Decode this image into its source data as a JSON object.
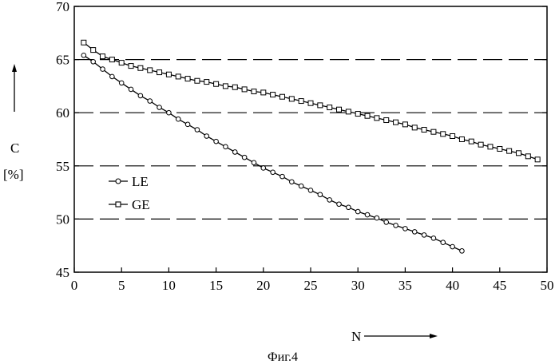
{
  "figure": {
    "caption": "Фиг.4"
  },
  "chart_data": {
    "type": "line",
    "xlabel": "N",
    "ylabel_line1": "C",
    "ylabel_line2": "[%]",
    "xlim": [
      0,
      50
    ],
    "ylim": [
      45,
      70
    ],
    "xticks": [
      0,
      5,
      10,
      15,
      20,
      25,
      30,
      35,
      40,
      45,
      50
    ],
    "yticks": [
      45,
      50,
      55,
      60,
      65,
      70
    ],
    "grid": "horizontal-dashed",
    "legend_position": "center-left",
    "series": [
      {
        "name": "LE",
        "marker": "circle",
        "x": [
          1,
          2,
          3,
          4,
          5,
          6,
          7,
          8,
          9,
          10,
          11,
          12,
          13,
          14,
          15,
          16,
          17,
          18,
          19,
          20,
          21,
          22,
          23,
          24,
          25,
          26,
          27,
          28,
          29,
          30,
          31,
          32,
          33,
          34,
          35,
          36,
          37,
          38,
          39,
          40,
          41
        ],
        "values": [
          65.4,
          64.8,
          64.1,
          63.4,
          62.8,
          62.2,
          61.6,
          61.1,
          60.5,
          60.0,
          59.4,
          58.9,
          58.4,
          57.8,
          57.3,
          56.8,
          56.3,
          55.8,
          55.3,
          54.8,
          54.4,
          54.0,
          53.5,
          53.1,
          52.7,
          52.3,
          51.8,
          51.4,
          51.1,
          50.7,
          50.4,
          50.1,
          49.7,
          49.4,
          49.1,
          48.8,
          48.5,
          48.2,
          47.8,
          47.4,
          47.0
        ]
      },
      {
        "name": "GE",
        "marker": "square",
        "x": [
          1,
          2,
          3,
          4,
          5,
          6,
          7,
          8,
          9,
          10,
          11,
          12,
          13,
          14,
          15,
          16,
          17,
          18,
          19,
          20,
          21,
          22,
          23,
          24,
          25,
          26,
          27,
          28,
          29,
          30,
          31,
          32,
          33,
          34,
          35,
          36,
          37,
          38,
          39,
          40,
          41,
          42,
          43,
          44,
          45,
          46,
          47,
          48,
          49
        ],
        "values": [
          66.6,
          65.9,
          65.3,
          65.0,
          64.7,
          64.4,
          64.2,
          64.0,
          63.8,
          63.6,
          63.4,
          63.2,
          63.0,
          62.9,
          62.7,
          62.5,
          62.4,
          62.2,
          62.0,
          61.9,
          61.7,
          61.5,
          61.3,
          61.1,
          60.9,
          60.7,
          60.5,
          60.3,
          60.1,
          59.9,
          59.7,
          59.5,
          59.3,
          59.1,
          58.9,
          58.6,
          58.4,
          58.2,
          58.0,
          57.8,
          57.5,
          57.3,
          57.0,
          56.8,
          56.6,
          56.4,
          56.2,
          55.9,
          55.6
        ]
      }
    ]
  }
}
